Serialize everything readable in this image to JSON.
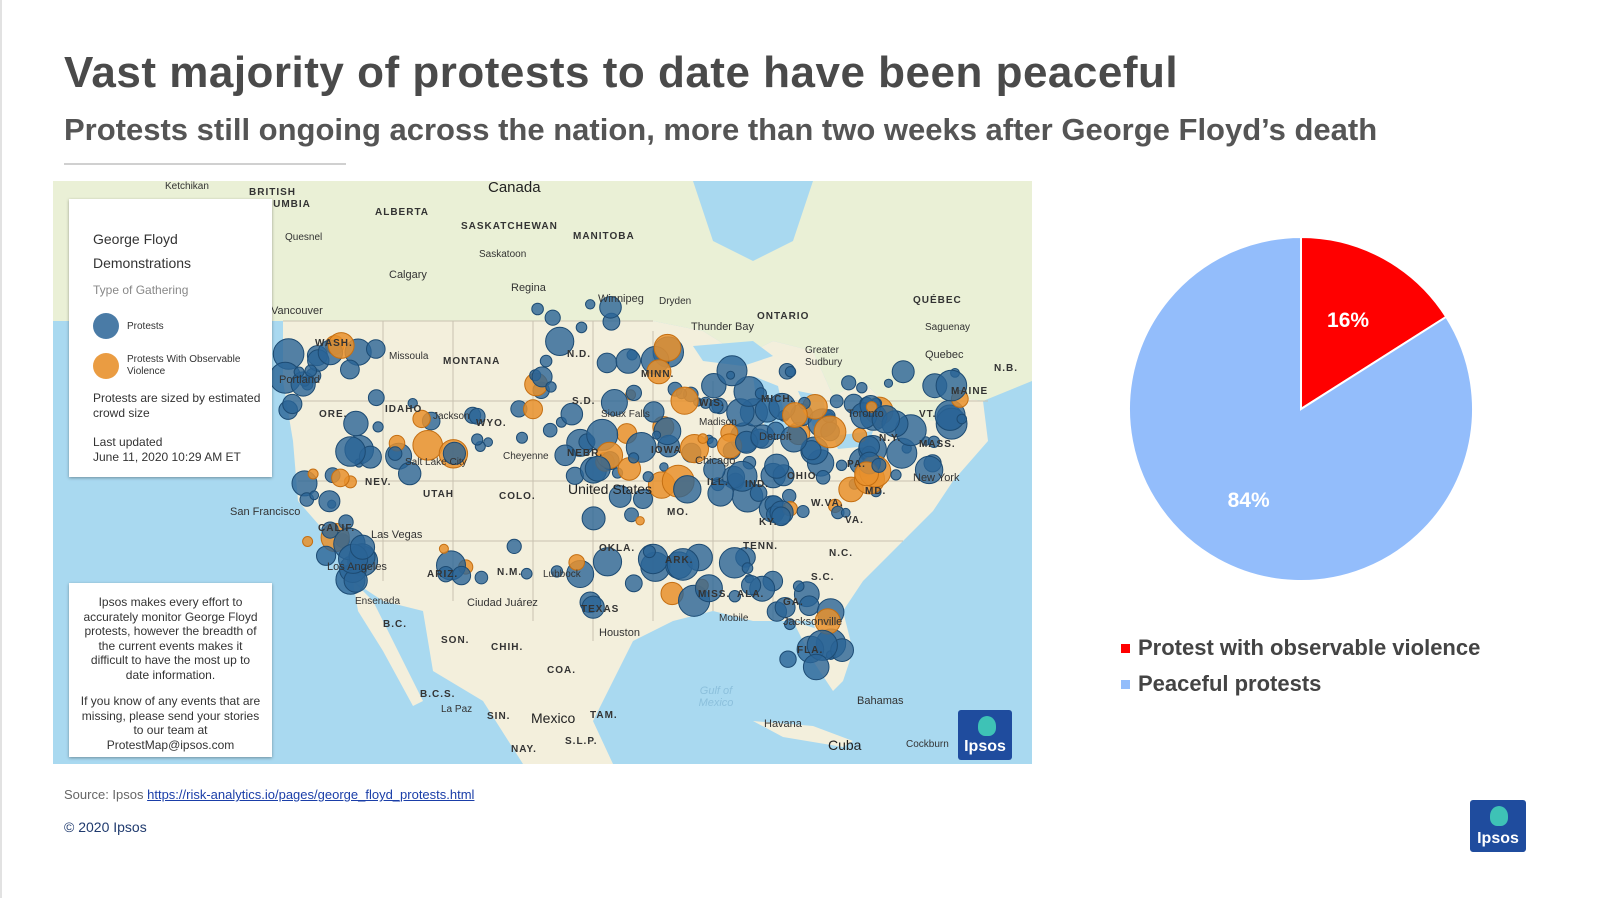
{
  "slide": {
    "title": "Vast majority of protests to date have been peaceful",
    "subtitle": "Protests still ongoing across the nation, more than two weeks after George Floyd’s death",
    "source_prefix": "Source: Ipsos ",
    "source_link": "https://risk-analytics.io/pages/george_floyd_protests.html",
    "copyright": "© 2020 Ipsos",
    "logo_text": "Ipsos"
  },
  "map": {
    "legend_title_1": "George Floyd",
    "legend_title_2": "Demonstrations",
    "legend_type_label": "Type of Gathering",
    "legend_protests": "Protests",
    "legend_violence": "Protests With Observable Violence",
    "legend_size_note": "Protests are sized by estimated crowd size",
    "legend_updated_label": "Last updated",
    "legend_updated_value": "June 11, 2020 10:29 AM ET",
    "notice_1": "Ipsos makes every effort to accurately monitor George Floyd protests, however the breadth of the current events makes it difficult to have the most up to date information.",
    "notice_2": "If you know of any events that are missing, please send your stories to our team at ProtestMap@ipsos.com",
    "labels": [
      "Canada",
      "BRITISH COLUMBIA",
      "ALBERTA",
      "SASKATCHEWAN",
      "MANITOBA",
      "ONTARIO",
      "QUÉBEC",
      "Calgary",
      "Regina",
      "Saskatoon",
      "Winnipeg",
      "Thunder Bay",
      "Quebec",
      "Toronto",
      "Vancouver",
      "WASH.",
      "Portland",
      "ORE.",
      "IDAHO",
      "MONTANA",
      "WYO.",
      "N.D.",
      "S.D.",
      "MINN.",
      "WIS.",
      "MICH.",
      "IOWA",
      "NEBR.",
      "COLO.",
      "UTAH",
      "NEV.",
      "CALIF.",
      "San Francisco",
      "Los Angeles",
      "Las Vegas",
      "ARIZ.",
      "N.M.",
      "TEXAS",
      "OKLA.",
      "ARK.",
      "MO.",
      "ILL.",
      "IND.",
      "OHIO",
      "KY.",
      "TENN.",
      "MISS.",
      "ALA.",
      "GA.",
      "FLA.",
      "S.C.",
      "N.C.",
      "VA.",
      "W.VA.",
      "PA.",
      "N.Y.",
      "MASS.",
      "VT.",
      "MAINE",
      "MD.",
      "New York",
      "Chicago",
      "Detroit",
      "Houston",
      "Jacksonville",
      "United States",
      "Mexico",
      "Cuba",
      "Bahamas",
      "Havana",
      "Gulf of Mexico",
      "Sioux Falls",
      "Salt Lake City",
      "Cheyenne",
      "Lubbock",
      "Ciudad Juárez",
      "Ensenada",
      "La Paz",
      "SON.",
      "CHIH.",
      "COA.",
      "B.C.S.",
      "SIN.",
      "TAM.",
      "NAY.",
      "S.L.P.",
      "Missoula",
      "Jackson",
      "Madison",
      "Mobile",
      "Greater Sudbury",
      "Saguenay",
      "N.B.",
      "Dryden",
      "Quesnel",
      "Ketchikan",
      "Cockburn",
      "B.C."
    ],
    "colors": {
      "protest": "#2a6496",
      "violence": "#e8912d",
      "land": "#f3efdc",
      "water": "#a9d9f0"
    }
  },
  "chart_data": {
    "type": "pie",
    "slices": [
      {
        "label": "Protest with observable violence",
        "value": 16,
        "display": "16%",
        "color": "#ff0000"
      },
      {
        "label": "Peaceful protests",
        "value": 84,
        "display": "84%",
        "color": "#93bdfb"
      }
    ],
    "legend_position": "bottom"
  }
}
